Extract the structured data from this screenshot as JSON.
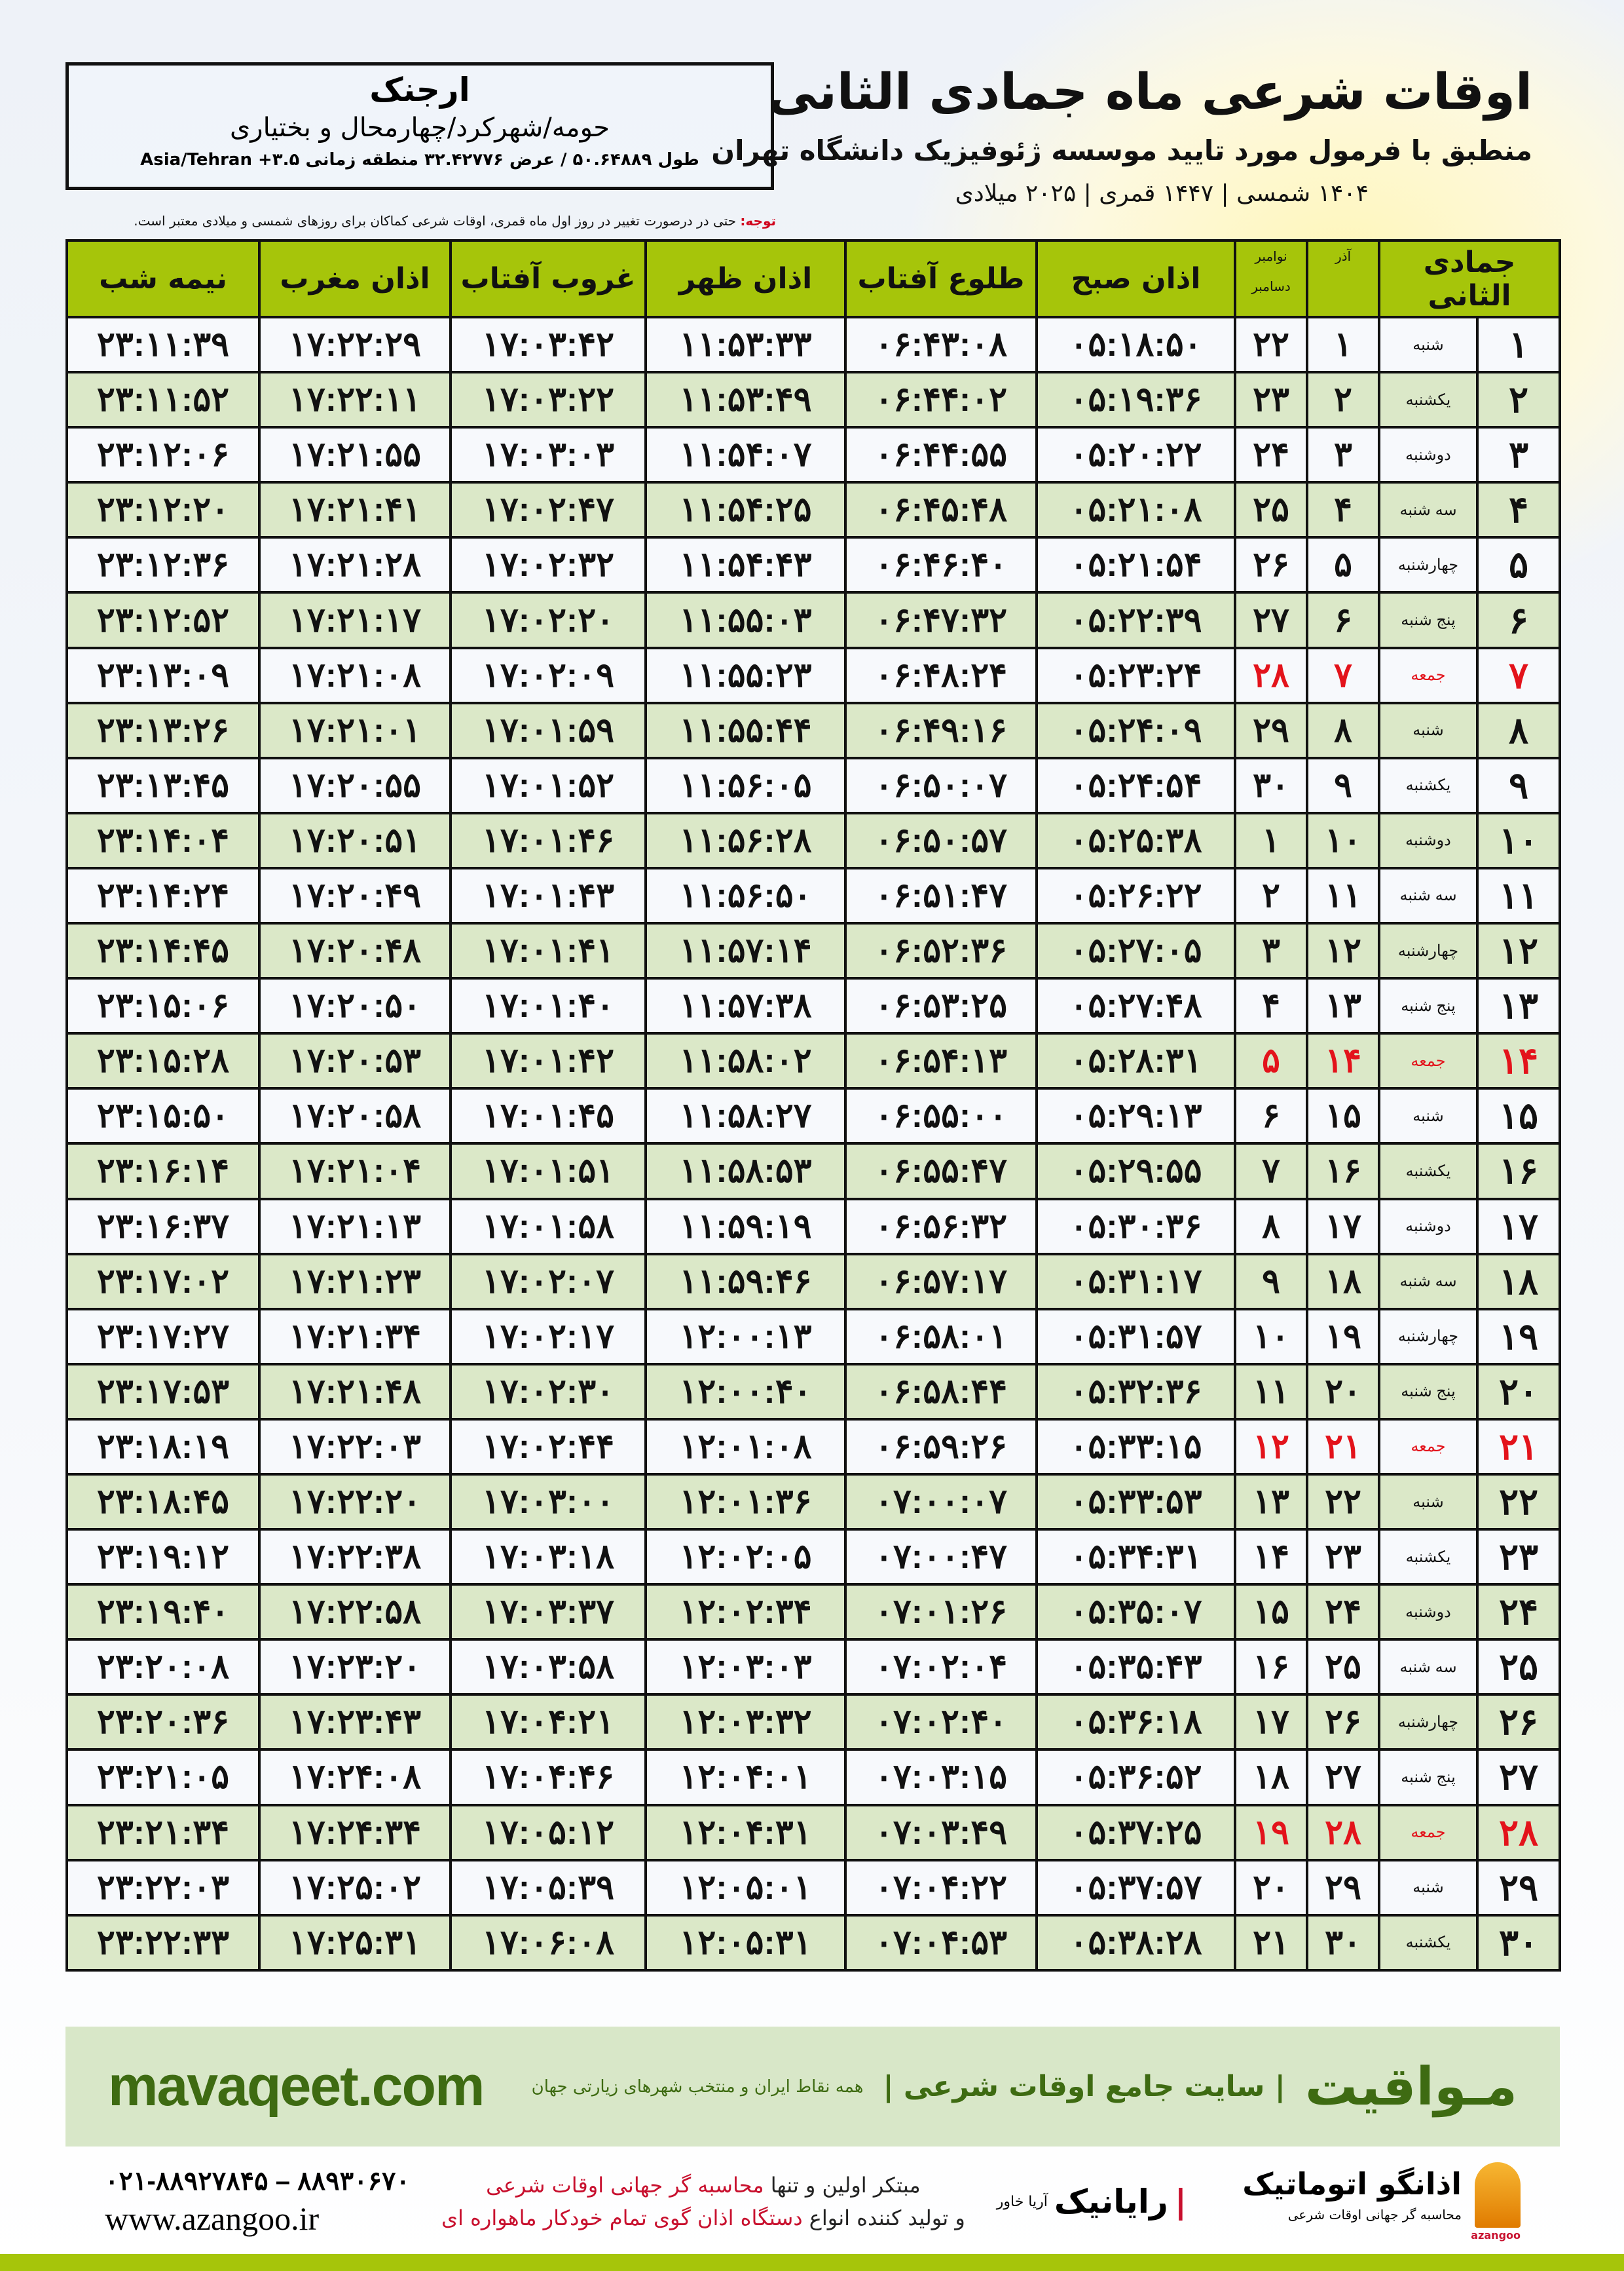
{
  "header": {
    "title": "اوقات شرعی ماه جمادی الثانی",
    "subtitle": "منطبق با فرمول مورد تایید موسسه ژئوفیزیک دانشگاه تهران",
    "years": "۱۴۰۴ شمسی | ۱۴۴۷ قمری | ۲۰۲۵ میلادی"
  },
  "location": {
    "city": "ارجنک",
    "region": "حومه/شهرکرد/چهارمحال و بختیاری",
    "coords": "طول ۵۰.۶۴۸۸۹ / عرض ۳۲.۴۲۷۷۶ منطقه زمانی ۳.۵+ Asia/Tehran"
  },
  "note": {
    "label": "توجه:",
    "text": " حتی در درصورت تغییر در روز اول ماه قمری، اوقات شرعی کماکان برای روزهای شمسی و میلادی معتبر است."
  },
  "table": {
    "headers": {
      "hijri": "جمادی الثانی",
      "azar": "آذر",
      "gregorian_top": "نوامبر",
      "gregorian_bottom": "دسامبر",
      "fajr": "اذان صبح",
      "sunrise": "طلوع آفتاب",
      "dhuhr": "اذان ظهر",
      "sunset": "غروب آفتاب",
      "maghrib": "اذان مغرب",
      "midnight": "نیمه شب"
    },
    "holiday_color": "#e3131b",
    "header_color": "#a6c50a",
    "rows": [
      [
        "۱",
        "شنبه",
        "۱",
        "۲۲",
        "۰۵:۱۸:۵۰",
        "۰۶:۴۳:۰۸",
        "۱۱:۵۳:۳۳",
        "۱۷:۰۳:۴۲",
        "۱۷:۲۲:۲۹",
        "۲۳:۱۱:۳۹"
      ],
      [
        "۲",
        "یکشنبه",
        "۲",
        "۲۳",
        "۰۵:۱۹:۳۶",
        "۰۶:۴۴:۰۲",
        "۱۱:۵۳:۴۹",
        "۱۷:۰۳:۲۲",
        "۱۷:۲۲:۱۱",
        "۲۳:۱۱:۵۲"
      ],
      [
        "۳",
        "دوشنبه",
        "۳",
        "۲۴",
        "۰۵:۲۰:۲۲",
        "۰۶:۴۴:۵۵",
        "۱۱:۵۴:۰۷",
        "۱۷:۰۳:۰۳",
        "۱۷:۲۱:۵۵",
        "۲۳:۱۲:۰۶"
      ],
      [
        "۴",
        "سه شنبه",
        "۴",
        "۲۵",
        "۰۵:۲۱:۰۸",
        "۰۶:۴۵:۴۸",
        "۱۱:۵۴:۲۵",
        "۱۷:۰۲:۴۷",
        "۱۷:۲۱:۴۱",
        "۲۳:۱۲:۲۰"
      ],
      [
        "۵",
        "چهارشنبه",
        "۵",
        "۲۶",
        "۰۵:۲۱:۵۴",
        "۰۶:۴۶:۴۰",
        "۱۱:۵۴:۴۳",
        "۱۷:۰۲:۳۲",
        "۱۷:۲۱:۲۸",
        "۲۳:۱۲:۳۶"
      ],
      [
        "۶",
        "پنج شنبه",
        "۶",
        "۲۷",
        "۰۵:۲۲:۳۹",
        "۰۶:۴۷:۳۲",
        "۱۱:۵۵:۰۳",
        "۱۷:۰۲:۲۰",
        "۱۷:۲۱:۱۷",
        "۲۳:۱۲:۵۲"
      ],
      [
        "۷",
        "جمعه",
        "۷",
        "۲۸",
        "۰۵:۲۳:۲۴",
        "۰۶:۴۸:۲۴",
        "۱۱:۵۵:۲۳",
        "۱۷:۰۲:۰۹",
        "۱۷:۲۱:۰۸",
        "۲۳:۱۳:۰۹"
      ],
      [
        "۸",
        "شنبه",
        "۸",
        "۲۹",
        "۰۵:۲۴:۰۹",
        "۰۶:۴۹:۱۶",
        "۱۱:۵۵:۴۴",
        "۱۷:۰۱:۵۹",
        "۱۷:۲۱:۰۱",
        "۲۳:۱۳:۲۶"
      ],
      [
        "۹",
        "یکشنبه",
        "۹",
        "۳۰",
        "۰۵:۲۴:۵۴",
        "۰۶:۵۰:۰۷",
        "۱۱:۵۶:۰۵",
        "۱۷:۰۱:۵۲",
        "۱۷:۲۰:۵۵",
        "۲۳:۱۳:۴۵"
      ],
      [
        "۱۰",
        "دوشنبه",
        "۱۰",
        "۱",
        "۰۵:۲۵:۳۸",
        "۰۶:۵۰:۵۷",
        "۱۱:۵۶:۲۸",
        "۱۷:۰۱:۴۶",
        "۱۷:۲۰:۵۱",
        "۲۳:۱۴:۰۴"
      ],
      [
        "۱۱",
        "سه شنبه",
        "۱۱",
        "۲",
        "۰۵:۲۶:۲۲",
        "۰۶:۵۱:۴۷",
        "۱۱:۵۶:۵۰",
        "۱۷:۰۱:۴۳",
        "۱۷:۲۰:۴۹",
        "۲۳:۱۴:۲۴"
      ],
      [
        "۱۲",
        "چهارشنبه",
        "۱۲",
        "۳",
        "۰۵:۲۷:۰۵",
        "۰۶:۵۲:۳۶",
        "۱۱:۵۷:۱۴",
        "۱۷:۰۱:۴۱",
        "۱۷:۲۰:۴۸",
        "۲۳:۱۴:۴۵"
      ],
      [
        "۱۳",
        "پنج شنبه",
        "۱۳",
        "۴",
        "۰۵:۲۷:۴۸",
        "۰۶:۵۳:۲۵",
        "۱۱:۵۷:۳۸",
        "۱۷:۰۱:۴۰",
        "۱۷:۲۰:۵۰",
        "۲۳:۱۵:۰۶"
      ],
      [
        "۱۴",
        "جمعه",
        "۱۴",
        "۵",
        "۰۵:۲۸:۳۱",
        "۰۶:۵۴:۱۳",
        "۱۱:۵۸:۰۲",
        "۱۷:۰۱:۴۲",
        "۱۷:۲۰:۵۳",
        "۲۳:۱۵:۲۸"
      ],
      [
        "۱۵",
        "شنبه",
        "۱۵",
        "۶",
        "۰۵:۲۹:۱۳",
        "۰۶:۵۵:۰۰",
        "۱۱:۵۸:۲۷",
        "۱۷:۰۱:۴۵",
        "۱۷:۲۰:۵۸",
        "۲۳:۱۵:۵۰"
      ],
      [
        "۱۶",
        "یکشنبه",
        "۱۶",
        "۷",
        "۰۵:۲۹:۵۵",
        "۰۶:۵۵:۴۷",
        "۱۱:۵۸:۵۳",
        "۱۷:۰۱:۵۱",
        "۱۷:۲۱:۰۴",
        "۲۳:۱۶:۱۴"
      ],
      [
        "۱۷",
        "دوشنبه",
        "۱۷",
        "۸",
        "۰۵:۳۰:۳۶",
        "۰۶:۵۶:۳۲",
        "۱۱:۵۹:۱۹",
        "۱۷:۰۱:۵۸",
        "۱۷:۲۱:۱۳",
        "۲۳:۱۶:۳۷"
      ],
      [
        "۱۸",
        "سه شنبه",
        "۱۸",
        "۹",
        "۰۵:۳۱:۱۷",
        "۰۶:۵۷:۱۷",
        "۱۱:۵۹:۴۶",
        "۱۷:۰۲:۰۷",
        "۱۷:۲۱:۲۳",
        "۲۳:۱۷:۰۲"
      ],
      [
        "۱۹",
        "چهارشنبه",
        "۱۹",
        "۱۰",
        "۰۵:۳۱:۵۷",
        "۰۶:۵۸:۰۱",
        "۱۲:۰۰:۱۳",
        "۱۷:۰۲:۱۷",
        "۱۷:۲۱:۳۴",
        "۲۳:۱۷:۲۷"
      ],
      [
        "۲۰",
        "پنج شنبه",
        "۲۰",
        "۱۱",
        "۰۵:۳۲:۳۶",
        "۰۶:۵۸:۴۴",
        "۱۲:۰۰:۴۰",
        "۱۷:۰۲:۳۰",
        "۱۷:۲۱:۴۸",
        "۲۳:۱۷:۵۳"
      ],
      [
        "۲۱",
        "جمعه",
        "۲۱",
        "۱۲",
        "۰۵:۳۳:۱۵",
        "۰۶:۵۹:۲۶",
        "۱۲:۰۱:۰۸",
        "۱۷:۰۲:۴۴",
        "۱۷:۲۲:۰۳",
        "۲۳:۱۸:۱۹"
      ],
      [
        "۲۲",
        "شنبه",
        "۲۲",
        "۱۳",
        "۰۵:۳۳:۵۳",
        "۰۷:۰۰:۰۷",
        "۱۲:۰۱:۳۶",
        "۱۷:۰۳:۰۰",
        "۱۷:۲۲:۲۰",
        "۲۳:۱۸:۴۵"
      ],
      [
        "۲۳",
        "یکشنبه",
        "۲۳",
        "۱۴",
        "۰۵:۳۴:۳۱",
        "۰۷:۰۰:۴۷",
        "۱۲:۰۲:۰۵",
        "۱۷:۰۳:۱۸",
        "۱۷:۲۲:۳۸",
        "۲۳:۱۹:۱۲"
      ],
      [
        "۲۴",
        "دوشنبه",
        "۲۴",
        "۱۵",
        "۰۵:۳۵:۰۷",
        "۰۷:۰۱:۲۶",
        "۱۲:۰۲:۳۴",
        "۱۷:۰۳:۳۷",
        "۱۷:۲۲:۵۸",
        "۲۳:۱۹:۴۰"
      ],
      [
        "۲۵",
        "سه شنبه",
        "۲۵",
        "۱۶",
        "۰۵:۳۵:۴۳",
        "۰۷:۰۲:۰۴",
        "۱۲:۰۳:۰۳",
        "۱۷:۰۳:۵۸",
        "۱۷:۲۳:۲۰",
        "۲۳:۲۰:۰۸"
      ],
      [
        "۲۶",
        "چهارشنبه",
        "۲۶",
        "۱۷",
        "۰۵:۳۶:۱۸",
        "۰۷:۰۲:۴۰",
        "۱۲:۰۳:۳۲",
        "۱۷:۰۴:۲۱",
        "۱۷:۲۳:۴۳",
        "۲۳:۲۰:۳۶"
      ],
      [
        "۲۷",
        "پنج شنبه",
        "۲۷",
        "۱۸",
        "۰۵:۳۶:۵۲",
        "۰۷:۰۳:۱۵",
        "۱۲:۰۴:۰۱",
        "۱۷:۰۴:۴۶",
        "۱۷:۲۴:۰۸",
        "۲۳:۲۱:۰۵"
      ],
      [
        "۲۸",
        "جمعه",
        "۲۸",
        "۱۹",
        "۰۵:۳۷:۲۵",
        "۰۷:۰۳:۴۹",
        "۱۲:۰۴:۳۱",
        "۱۷:۰۵:۱۲",
        "۱۷:۲۴:۳۴",
        "۲۳:۲۱:۳۴"
      ],
      [
        "۲۹",
        "شنبه",
        "۲۹",
        "۲۰",
        "۰۵:۳۷:۵۷",
        "۰۷:۰۴:۲۲",
        "۱۲:۰۵:۰۱",
        "۱۷:۰۵:۳۹",
        "۱۷:۲۵:۰۲",
        "۲۳:۲۲:۰۳"
      ],
      [
        "۳۰",
        "یکشنبه",
        "۳۰",
        "۲۱",
        "۰۵:۳۸:۲۸",
        "۰۷:۰۴:۵۳",
        "۱۲:۰۵:۳۱",
        "۱۷:۰۶:۰۸",
        "۱۷:۲۵:۳۱",
        "۲۳:۲۲:۳۳"
      ]
    ]
  },
  "promo": {
    "brand": "مـواقیت",
    "tagline": "| سایت جامع اوقات شرعی |",
    "tagline2": "همه نقاط ایران و منتخب شهرهای زیارتی جهان",
    "site": "mavaqeet.com"
  },
  "footer": {
    "phone": "۰۲۱-۸۸۹۲۷۸۴۵ – ۸۸۹۳۰۶۷۰",
    "website": "www.azangoo.ir",
    "slogan_1a": "مبتکر اولین و تنها ",
    "slogan_1b": "محاسبه گر جهانی اوقات شرعی",
    "slogan_2a": "و تولید کننده انواع ",
    "slogan_2b": "دستگاه اذان گوی تمام خودکار ماهواره ای",
    "logo_rayanik": "رایانیک",
    "logo_rayanik_sub": "آریا خاور",
    "logo_azangoo": "اذانگو اتوماتیک",
    "logo_azangoo_sub": "محاسبه گر جهانی اوقات شرعی",
    "logo_azangoo_latin": "azangoo"
  }
}
